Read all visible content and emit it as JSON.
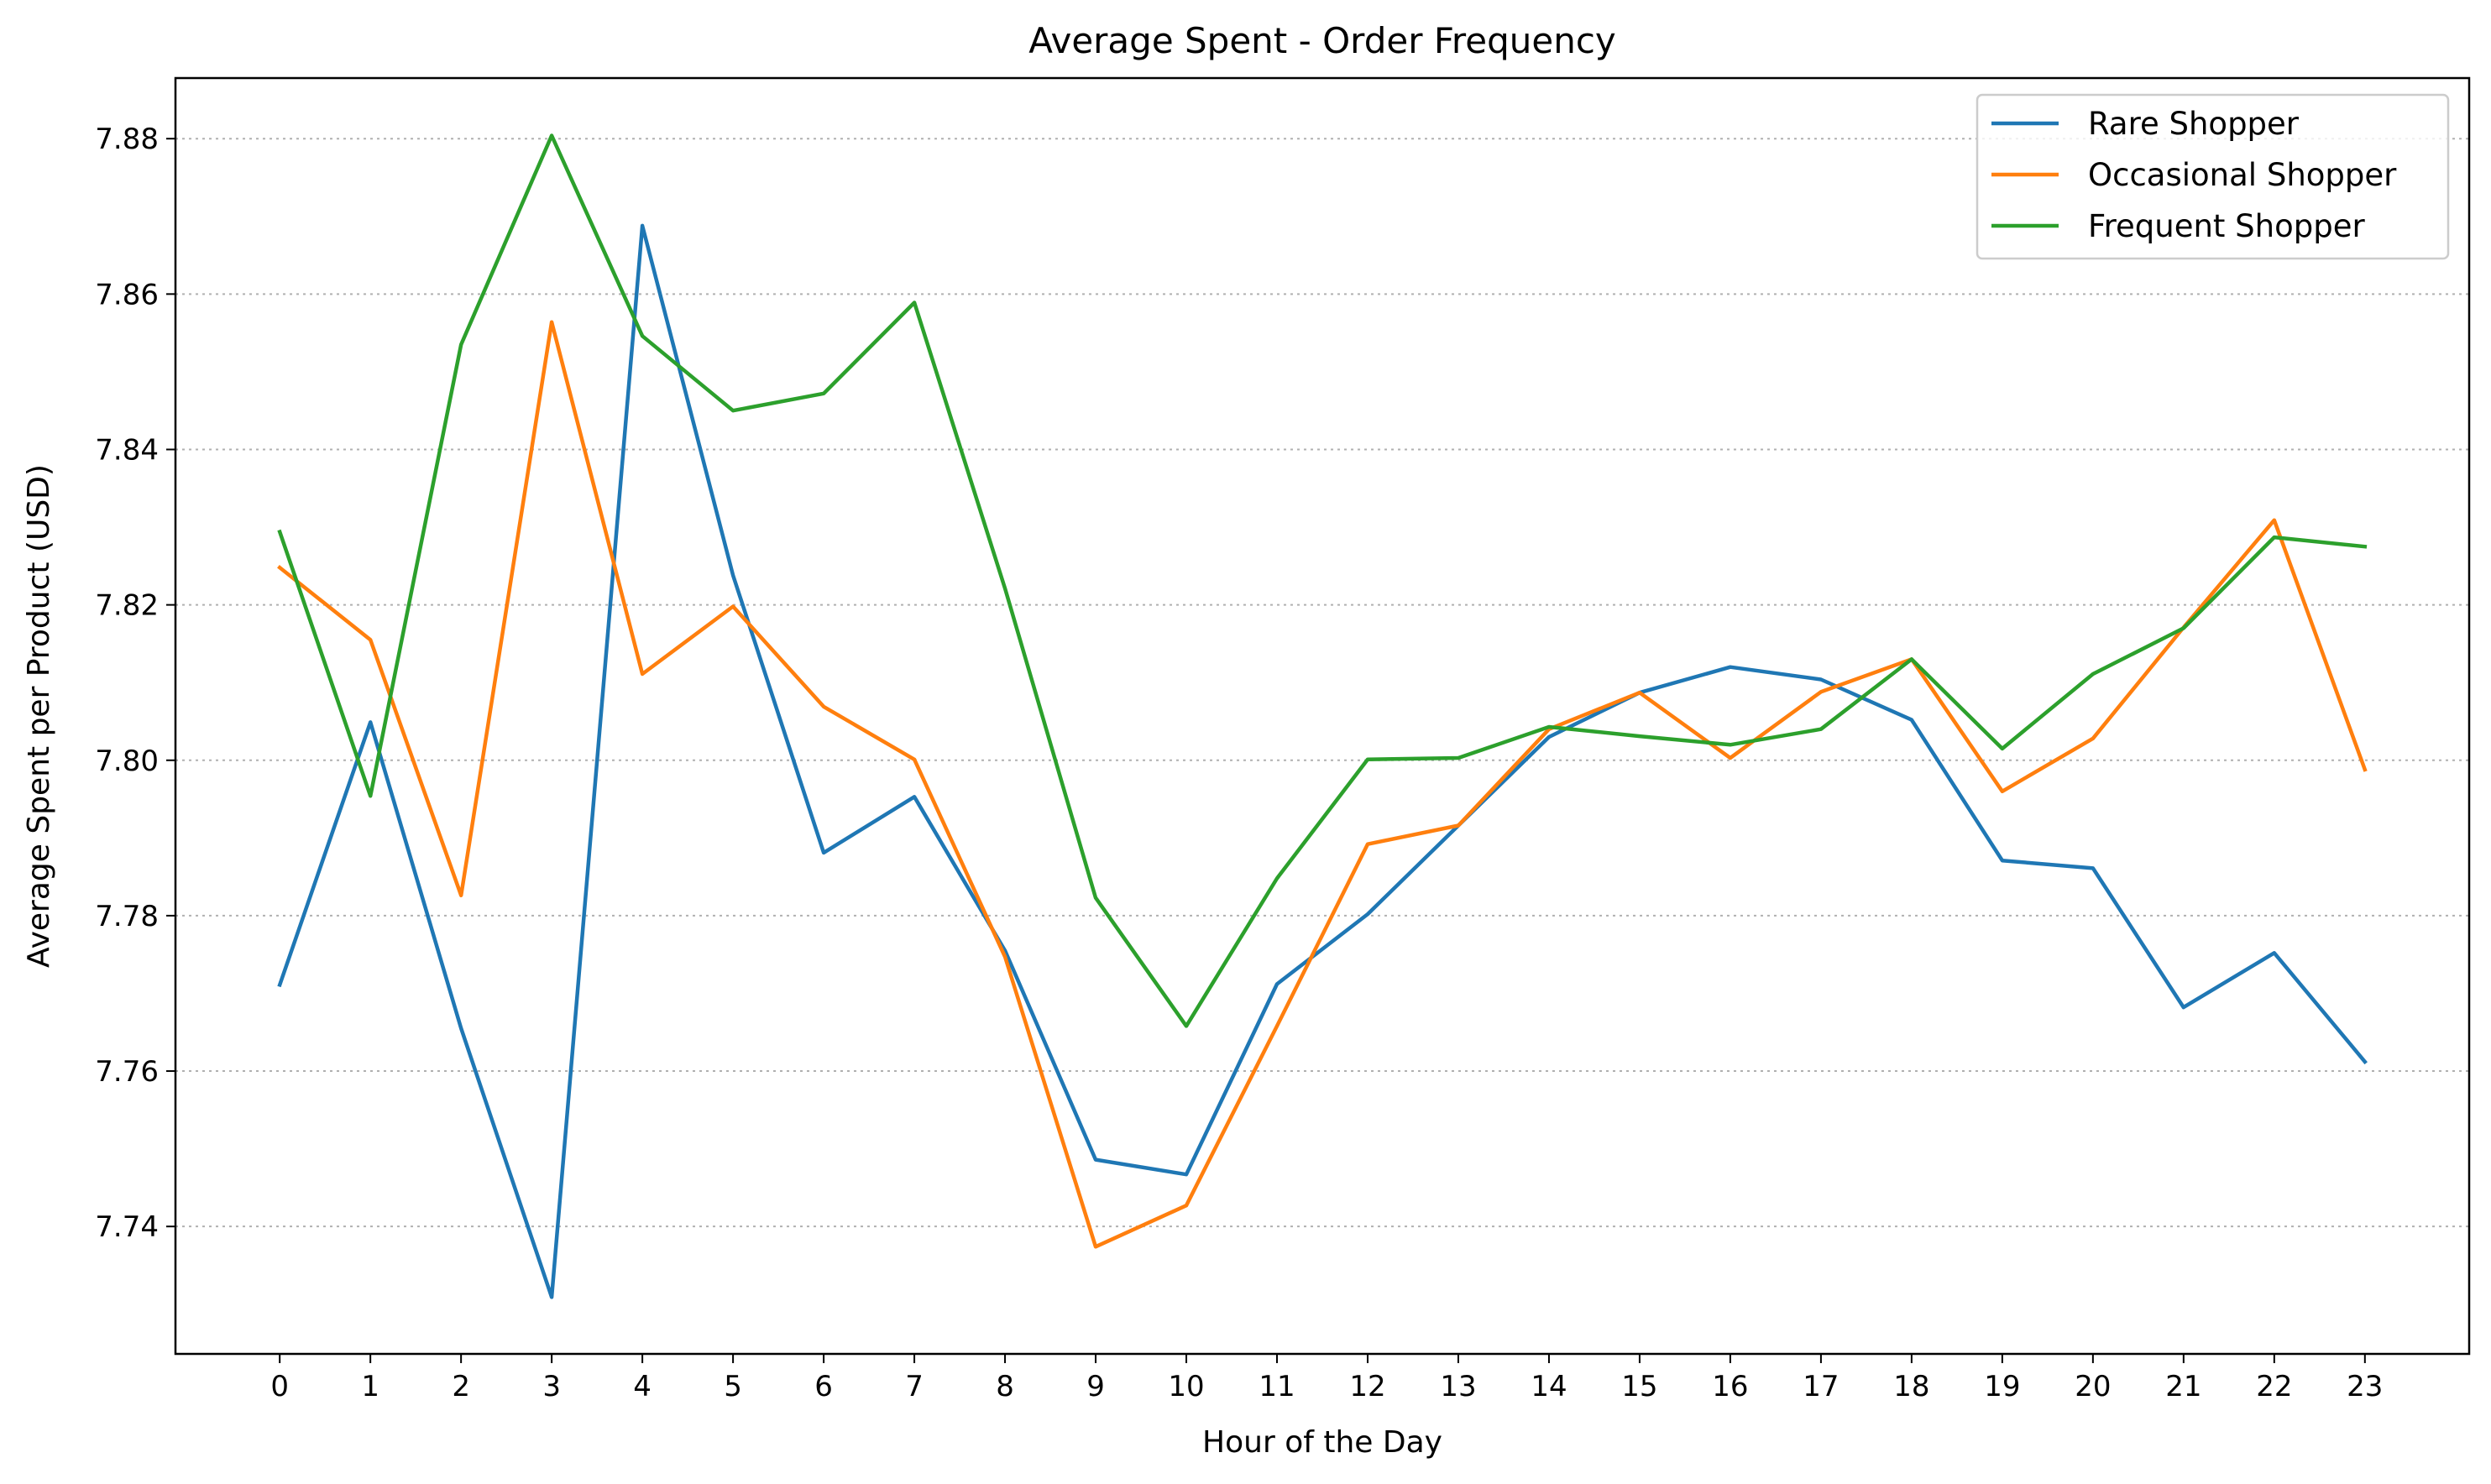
{
  "chart_data": {
    "type": "line",
    "title": "Average Spent - Order Frequency",
    "xlabel": "Hour of the Day",
    "ylabel": "Average Spent per Product (USD)",
    "x": [
      0,
      1,
      2,
      3,
      4,
      5,
      6,
      7,
      8,
      9,
      10,
      11,
      12,
      13,
      14,
      15,
      16,
      17,
      18,
      19,
      20,
      21,
      22,
      23
    ],
    "xlim": [
      -1.15,
      24.15
    ],
    "ylim": [
      7.7236,
      7.8878
    ],
    "yticks": [
      "7.74",
      "7.76",
      "7.78",
      "7.80",
      "7.82",
      "7.84",
      "7.86",
      "7.88"
    ],
    "grid": "y-dotted",
    "legend_position": "top-right",
    "series": [
      {
        "name": "Rare Shopper",
        "color": "#1f77b4",
        "values": [
          7.7711,
          7.8049,
          7.7655,
          7.7309,
          7.8688,
          7.8238,
          7.7881,
          7.7953,
          7.7755,
          7.7486,
          7.7467,
          7.7712,
          7.7802,
          7.7916,
          7.803,
          7.8087,
          7.812,
          7.8104,
          7.8052,
          7.7871,
          7.7861,
          7.7682,
          7.7752,
          7.7612
        ]
      },
      {
        "name": "Occasional Shopper",
        "color": "#ff7f0e",
        "values": [
          7.8248,
          7.8155,
          7.7826,
          7.8564,
          7.8111,
          7.8198,
          7.8069,
          7.8001,
          7.7747,
          7.7374,
          7.7427,
          7.7658,
          7.7892,
          7.7916,
          7.804,
          7.8087,
          7.8003,
          7.8088,
          7.813,
          7.796,
          7.8028,
          7.8171,
          7.8309,
          7.7988
        ]
      },
      {
        "name": "Frequent Shopper",
        "color": "#2ca02c",
        "values": [
          7.8294,
          7.7954,
          7.8535,
          7.8804,
          7.8546,
          7.845,
          7.8472,
          7.8589,
          7.8221,
          7.7823,
          7.7658,
          7.7848,
          7.8001,
          7.8003,
          7.8043,
          7.8031,
          7.802,
          7.804,
          7.813,
          7.8015,
          7.8111,
          7.817,
          7.8287,
          7.8275
        ]
      }
    ]
  }
}
